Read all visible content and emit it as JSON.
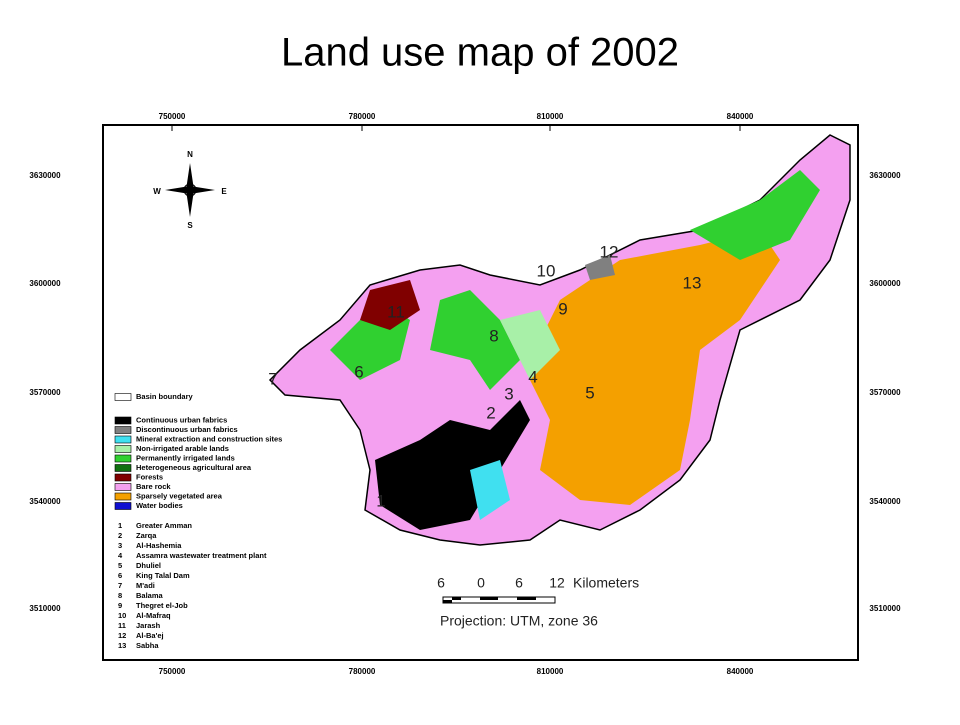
{
  "title": "Land use map of 2002",
  "map": {
    "x_labels": [
      "750000",
      "780000",
      "810000",
      "840000"
    ],
    "y_labels": [
      "3630000",
      "3600000",
      "3570000",
      "3540000",
      "3510000"
    ],
    "compass": {
      "n": "N",
      "e": "E",
      "s": "S",
      "w": "W"
    },
    "legend": [
      {
        "label": "Basin boundary",
        "color": "#ffffff"
      },
      {
        "label": "Continuous urban fabrics",
        "color": "#000000"
      },
      {
        "label": "Discontinuous urban fabrics",
        "color": "#808080"
      },
      {
        "label": "Mineral extraction and construction sites",
        "color": "#40e0f0"
      },
      {
        "label": "Non-irrigated arable lands",
        "color": "#a8f0a8"
      },
      {
        "label": "Permanently irrigated lands",
        "color": "#30d030"
      },
      {
        "label": "Heterogeneous agricultural area",
        "color": "#107010"
      },
      {
        "label": "Forests",
        "color": "#800000"
      },
      {
        "label": "Bare rock",
        "color": "#f4a0f0"
      },
      {
        "label": "Sparsely vegetated area",
        "color": "#f4a000"
      },
      {
        "label": "Water bodies",
        "color": "#1010d0"
      }
    ],
    "places": [
      {
        "number": "1",
        "name": "Greater Amman"
      },
      {
        "number": "2",
        "name": "Zarqa"
      },
      {
        "number": "3",
        "name": "Al-Hashemia"
      },
      {
        "number": "4",
        "name": "Assamra wastewater treatment plant"
      },
      {
        "number": "5",
        "name": "Dhuliel"
      },
      {
        "number": "6",
        "name": "King Talal Dam"
      },
      {
        "number": "7",
        "name": "M'adi"
      },
      {
        "number": "8",
        "name": "Balama"
      },
      {
        "number": "9",
        "name": "Thegret el-Job"
      },
      {
        "number": "10",
        "name": "Al-Mafraq"
      },
      {
        "number": "11",
        "name": "Jarash"
      },
      {
        "number": "12",
        "name": "Al-Ba'ej"
      },
      {
        "number": "13",
        "name": "Sabha"
      }
    ],
    "scale": {
      "ticks": [
        "6",
        "0",
        "6",
        "12"
      ],
      "unit": "Kilometers"
    },
    "projection": "Projection: UTM, zone 36"
  }
}
